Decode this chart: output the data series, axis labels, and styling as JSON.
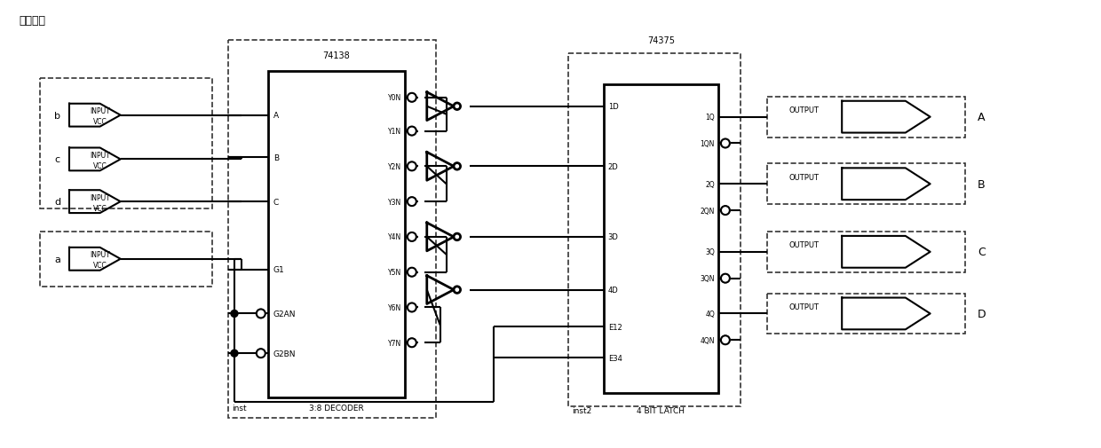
{
  "bg_color": "#ffffff",
  "fig_width": 12.4,
  "fig_height": 5.06,
  "main_label": "主控芯片",
  "decoder_label": "74138",
  "decoder_sub": "3:8 DECODER",
  "decoder_inst": "inst",
  "latch_label": "74375",
  "latch_sub": "4 BIT LATCH",
  "latch_inst": "inst2",
  "decoder_left_pins": [
    "A",
    "B",
    "C",
    "G1",
    "G2AN",
    "G2BN"
  ],
  "decoder_right_pins": [
    "Y0N",
    "Y1N",
    "Y2N",
    "Y3N",
    "Y4N",
    "Y5N",
    "Y6N",
    "Y7N"
  ],
  "latch_left_pins": [
    "1D",
    "2D",
    "3D",
    "4D",
    "E12",
    "E34"
  ],
  "latch_right_pins": [
    "1Q",
    "1QN",
    "2Q",
    "2QN",
    "3Q",
    "3QN",
    "4Q",
    "4QN"
  ],
  "output_labels": [
    "A",
    "B",
    "C",
    "D"
  ]
}
